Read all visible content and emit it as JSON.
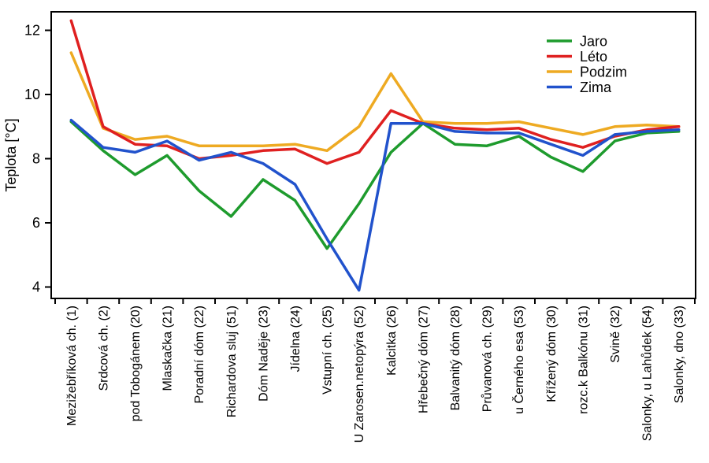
{
  "background": "#ffffff",
  "axis_color": "#000000",
  "chart_data": {
    "type": "line",
    "title": "",
    "xlabel": "",
    "ylabel": "Teplota [°C]",
    "ylim": [
      3.7,
      12.6
    ],
    "yticks": [
      4,
      6,
      8,
      10,
      12
    ],
    "grid": false,
    "legend_position": "top-right",
    "categories": [
      "Mezižebříková ch. (1)",
      "Srdcová ch. (2)",
      "pod Tobogánem (20)",
      "Mlaskačka (21)",
      "Poradní dóm (22)",
      "Richardova sluj (51)",
      "Dóm Naděje (23)",
      "Jídelna (24)",
      "Vstupní ch. (25)",
      "U Zarosen.netopýra (52)",
      "Kalcitka (26)",
      "Hřebečný dóm (27)",
      "Balvanitý dóm (28)",
      "Průvanová ch. (29)",
      "u Černého esa (53)",
      "Křížený dóm (30)",
      "rozc.k Balkónu (31)",
      "Svině (32)",
      "Salonky, u Lahůdek (54)",
      "Salonky, dno (33)"
    ],
    "series": [
      {
        "name": "Jaro",
        "color": "#1e9b2d",
        "values": [
          9.15,
          8.25,
          7.5,
          8.1,
          7.0,
          6.2,
          7.35,
          6.7,
          5.2,
          6.6,
          8.2,
          9.1,
          8.45,
          8.4,
          8.7,
          8.05,
          7.6,
          8.55,
          8.8,
          8.85
        ]
      },
      {
        "name": "Léto",
        "color": "#df2020",
        "values": [
          12.3,
          9.0,
          8.45,
          8.4,
          8.0,
          8.1,
          8.25,
          8.3,
          7.85,
          8.2,
          9.5,
          9.1,
          8.95,
          8.9,
          8.95,
          8.6,
          8.35,
          8.7,
          8.9,
          9.0
        ]
      },
      {
        "name": "Podzim",
        "color": "#eeaa22",
        "values": [
          11.3,
          8.95,
          8.6,
          8.7,
          8.4,
          8.4,
          8.4,
          8.45,
          8.25,
          9.0,
          10.65,
          9.15,
          9.1,
          9.1,
          9.15,
          8.95,
          8.75,
          9.0,
          9.05,
          9.0
        ]
      },
      {
        "name": "Zima",
        "color": "#2152cc",
        "values": [
          9.2,
          8.35,
          8.2,
          8.55,
          7.95,
          8.2,
          7.85,
          7.2,
          5.5,
          3.9,
          9.1,
          9.1,
          8.85,
          8.8,
          8.8,
          8.45,
          8.1,
          8.75,
          8.85,
          8.9
        ]
      }
    ]
  }
}
